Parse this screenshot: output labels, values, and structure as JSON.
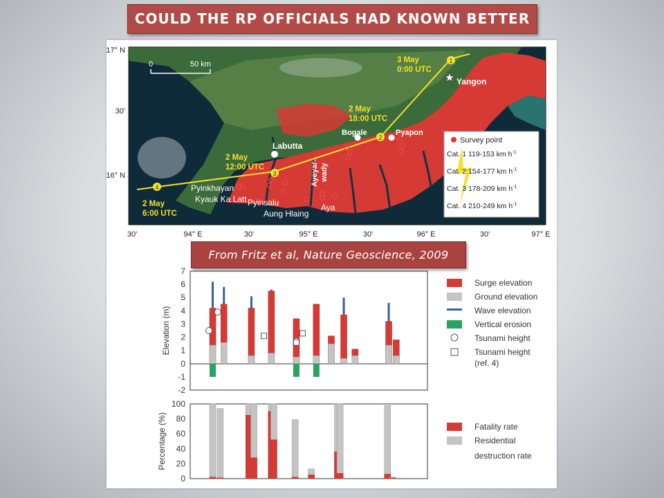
{
  "slide": {
    "title": "COULD THE RP OFFICIALS HAD KNOWN BETTER ?",
    "credit": "From Fritz et al, Nature Geoscience, 2009"
  },
  "map": {
    "lat_labels": [
      "17° N",
      "30'",
      "16° N"
    ],
    "lon_labels": [
      "30'",
      "94° E",
      "30'",
      "95° E",
      "30'",
      "96° E",
      "30'",
      "97° E"
    ],
    "scale": {
      "zero": "0",
      "label": "50 km"
    },
    "places": [
      {
        "id": "yangon",
        "name": "Yangon"
      },
      {
        "id": "bogale",
        "name": "Bogale"
      },
      {
        "id": "pyapon",
        "name": "Pyapon"
      },
      {
        "id": "labutta",
        "name": "Labutta"
      },
      {
        "id": "pyinkhayan",
        "name": "Pyinkhayan"
      },
      {
        "id": "kyauk",
        "name": "Kyauk Ka Latt"
      },
      {
        "id": "pyinsalu",
        "name": "Pyinsalu"
      },
      {
        "id": "aunghlaing",
        "name": "Aung Hlaing"
      },
      {
        "id": "aya",
        "name": "Aya"
      },
      {
        "id": "ayeyar1",
        "name": "Ayeyar-"
      },
      {
        "id": "ayeyar2",
        "name": "wady"
      }
    ],
    "track": [
      {
        "num": "4",
        "date": "2 May",
        "time": "6:00 UTC"
      },
      {
        "num": "3",
        "date": "2 May",
        "time": "12:00 UTC"
      },
      {
        "num": "2",
        "date": "2 May",
        "time": "18:00 UTC"
      },
      {
        "num": "1",
        "date": "3 May",
        "time": "0:00 UTC"
      }
    ],
    "legend": {
      "survey": "Survey point",
      "categories": [
        {
          "prefix": "Cat.",
          "num": "1",
          "range": "119-153 km h",
          "exp": "-1"
        },
        {
          "prefix": "Cat.",
          "num": "2",
          "range": "154-177 km h",
          "exp": "-1"
        },
        {
          "prefix": "Cat.",
          "num": "3",
          "range": "178-209 km h",
          "exp": "-1"
        },
        {
          "prefix": "Cat.",
          "num": "4",
          "range": "210-249 km h",
          "exp": "-1"
        }
      ]
    }
  },
  "colors": {
    "surge": "#d63a35",
    "ground": "#c4c4c4",
    "wave": "#3b5f9b",
    "erosion": "#2aa35f",
    "track": "#f2e22a"
  },
  "chart_data": [
    {
      "type": "bar",
      "ylabel": "Elevation (m)",
      "ylim": [
        -2,
        7
      ],
      "yticks": [
        "7",
        "6",
        "5",
        "4",
        "3",
        "2",
        "1",
        "0",
        "-1",
        "-2"
      ],
      "legend": [
        {
          "key": "surge",
          "label": "Surge elevation"
        },
        {
          "key": "ground",
          "label": "Ground elevation"
        },
        {
          "key": "wave",
          "label": "Wave elevation"
        },
        {
          "key": "erosion",
          "label": "Vertical erosion"
        },
        {
          "key": "tsunami",
          "label": "Tsunami height"
        },
        {
          "key": "tsunami_ref",
          "label": "Tsunami height",
          "label2": "(ref. 4)"
        }
      ],
      "sites": [
        {
          "x": 0.9,
          "ground": 1.4,
          "surge": 4.2,
          "wave": 6.2,
          "erosion": -1.0
        },
        {
          "x": 1.35,
          "ground": 1.6,
          "surge": 4.5,
          "wave": 5.8
        },
        {
          "x": 2.45,
          "ground": 0.6,
          "surge": 4.2,
          "wave": 5.1
        },
        {
          "x": 3.25,
          "ground": 0.8,
          "surge": 5.5,
          "wave": 5.6
        },
        {
          "x": 4.25,
          "ground": 0.5,
          "surge": 3.4,
          "erosion": -1.0
        },
        {
          "x": 5.05,
          "ground": 0.6,
          "surge": 4.5,
          "wave": 4.4,
          "erosion": -1.0
        },
        {
          "x": 5.65,
          "ground": 1.5,
          "surge": 2.1
        },
        {
          "x": 6.15,
          "ground": 0.4,
          "surge": 3.7,
          "wave": 5.0
        },
        {
          "x": 6.6,
          "ground": 0.6,
          "surge": 1.1
        },
        {
          "x": 7.95,
          "ground": 1.4,
          "surge": 3.2,
          "wave": 4.6
        },
        {
          "x": 8.25,
          "ground": 0.6,
          "surge": 1.8
        }
      ],
      "tsunami": [
        {
          "x": 0.75,
          "y": 2.5
        },
        {
          "x": 1.1,
          "y": 3.9
        },
        {
          "x": 4.25,
          "y": 1.7
        }
      ],
      "tsunami_ref": [
        {
          "x": 2.95,
          "y": 2.1
        },
        {
          "x": 4.5,
          "y": 2.3
        },
        {
          "x": 4.25,
          "y": 1.6
        }
      ]
    },
    {
      "type": "bar",
      "ylabel": "Percentage (%)",
      "ylim": [
        0,
        100
      ],
      "yticks": [
        "100",
        "80",
        "60",
        "40",
        "20",
        "0"
      ],
      "legend": [
        {
          "key": "fatality",
          "label": "Fatality rate"
        },
        {
          "key": "residential",
          "label": "Residential",
          "label2": "destruction rate"
        }
      ],
      "sites": [
        {
          "x": 0.9,
          "residential": 100,
          "fatality": 2
        },
        {
          "x": 1.2,
          "residential": 94,
          "fatality": 1
        },
        {
          "x": 2.35,
          "residential": 100,
          "fatality": 85
        },
        {
          "x": 2.55,
          "residential": 100,
          "fatality": 28
        },
        {
          "x": 3.25,
          "residential": 100,
          "fatality": 90
        },
        {
          "x": 3.35,
          "residential": 100,
          "fatality": 52
        },
        {
          "x": 4.2,
          "residential": 79,
          "fatality": 2
        },
        {
          "x": 4.85,
          "residential": 13,
          "fatality": 5
        },
        {
          "x": 5.9,
          "residential": 100,
          "fatality": 36
        },
        {
          "x": 6.0,
          "residential": 100,
          "fatality": 7
        },
        {
          "x": 7.9,
          "residential": 98,
          "fatality": 6
        },
        {
          "x": 8.1,
          "residential": 2,
          "fatality": 1
        }
      ]
    }
  ]
}
